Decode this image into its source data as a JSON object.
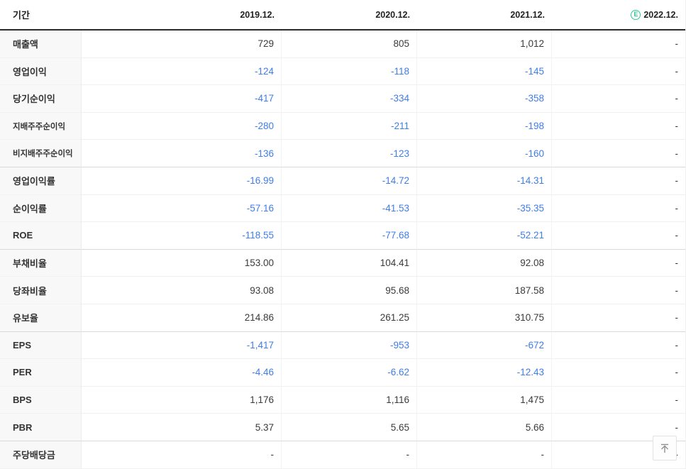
{
  "colors": {
    "negative_value": "#3f7de8",
    "estimate_badge": "#2fc795",
    "header_rule": "#2b2b2b",
    "label_column_bg": "#f8f8f8"
  },
  "header": {
    "period_label": "기간",
    "estimate_glyph": "E",
    "columns": [
      {
        "label": "2019.12.",
        "estimate": false
      },
      {
        "label": "2020.12.",
        "estimate": false
      },
      {
        "label": "2021.12.",
        "estimate": false
      },
      {
        "label": "2022.12.",
        "estimate": true
      }
    ]
  },
  "rows": [
    {
      "label": "매출액",
      "values": [
        "729",
        "805",
        "1,012",
        "-"
      ],
      "group_end": false
    },
    {
      "label": "영업이익",
      "values": [
        "-124",
        "-118",
        "-145",
        "-"
      ],
      "group_end": false
    },
    {
      "label": "당기순이익",
      "values": [
        "-417",
        "-334",
        "-358",
        "-"
      ],
      "group_end": false
    },
    {
      "label": "지배주주순이익",
      "values": [
        "-280",
        "-211",
        "-198",
        "-"
      ],
      "group_end": false
    },
    {
      "label": "비지배주주순이익",
      "values": [
        "-136",
        "-123",
        "-160",
        "-"
      ],
      "group_end": true
    },
    {
      "label": "영업이익률",
      "values": [
        "-16.99",
        "-14.72",
        "-14.31",
        "-"
      ],
      "group_end": false
    },
    {
      "label": "순이익률",
      "values": [
        "-57.16",
        "-41.53",
        "-35.35",
        "-"
      ],
      "group_end": false
    },
    {
      "label": "ROE",
      "values": [
        "-118.55",
        "-77.68",
        "-52.21",
        "-"
      ],
      "group_end": true
    },
    {
      "label": "부채비율",
      "values": [
        "153.00",
        "104.41",
        "92.08",
        "-"
      ],
      "group_end": false
    },
    {
      "label": "당좌비율",
      "values": [
        "93.08",
        "95.68",
        "187.58",
        "-"
      ],
      "group_end": false
    },
    {
      "label": "유보율",
      "values": [
        "214.86",
        "261.25",
        "310.75",
        "-"
      ],
      "group_end": true
    },
    {
      "label": "EPS",
      "values": [
        "-1,417",
        "-953",
        "-672",
        "-"
      ],
      "group_end": false
    },
    {
      "label": "PER",
      "values": [
        "-4.46",
        "-6.62",
        "-12.43",
        "-"
      ],
      "group_end": false
    },
    {
      "label": "BPS",
      "values": [
        "1,176",
        "1,116",
        "1,475",
        "-"
      ],
      "group_end": false
    },
    {
      "label": "PBR",
      "values": [
        "5.37",
        "5.65",
        "5.66",
        "-"
      ],
      "group_end": true
    },
    {
      "label": "주당배당금",
      "values": [
        "-",
        "-",
        "-",
        "-"
      ],
      "group_end": false
    }
  ]
}
